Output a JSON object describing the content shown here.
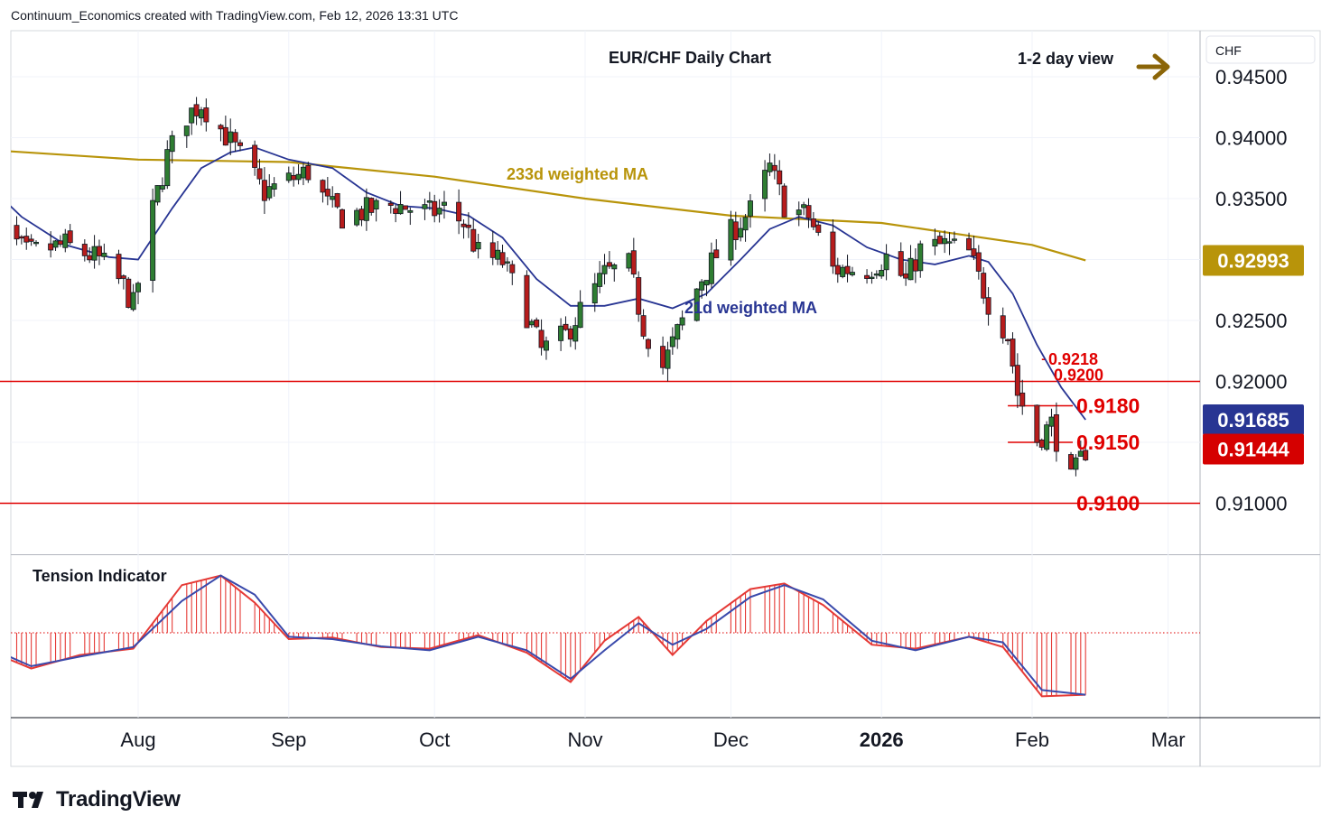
{
  "header": {
    "credit": "Continuum_Economics created with TradingView.com, Feb 12, 2026 13:31 UTC"
  },
  "chart_title": "EUR/CHF Daily Chart",
  "view_label": "1-2 day view",
  "currency": "CHF",
  "brand": "TradingView",
  "ma_labels": {
    "ma233": "233d weighted MA",
    "ma21": "21d weighted MA"
  },
  "indicator_label": "Tension Indicator",
  "price_badges": {
    "ma233": "0.92993",
    "ma21": "0.91685",
    "last": "0.91444"
  },
  "levels": {
    "l9218": "0.9218",
    "l9200": "0.9200",
    "l9180": "0.9180",
    "l9150": "0.9150",
    "l9100": "0.9100"
  },
  "colors": {
    "up_candle": "#2e7d32",
    "down_candle": "#b71c1c",
    "ma233": "#b8940a",
    "ma21": "#283593",
    "level_line": "#e00000",
    "arrow": "#8b6508",
    "badge_last": "#d50000",
    "badge_ma21": "#283593",
    "badge_ma233": "#b8940a"
  },
  "chart_data": [
    {
      "type": "candlestick",
      "title": "EUR/CHF Daily Chart",
      "ylim": [
        0.906,
        0.9495
      ],
      "y_ticks": [
        "0.94500",
        "0.94000",
        "0.93500",
        "0.93000",
        "0.92500",
        "0.92000",
        "0.91500",
        "0.91000"
      ],
      "x_ticks": [
        {
          "label": "Aug",
          "date": "2025-08-01"
        },
        {
          "label": "Sep",
          "date": "2025-09-01"
        },
        {
          "label": "Oct",
          "date": "2025-10-01"
        },
        {
          "label": "Nov",
          "date": "2025-11-01"
        },
        {
          "label": "Dec",
          "date": "2025-12-01"
        },
        {
          "label": "2026",
          "date": "2026-01-01",
          "bold": true
        },
        {
          "label": "Feb",
          "date": "2026-02-01"
        },
        {
          "label": "Mar",
          "date": "2026-03-01"
        }
      ],
      "close_path": [
        [
          "2025-07-01",
          0.9335
        ],
        [
          "2025-07-09",
          0.9305
        ],
        [
          "2025-07-17",
          0.9312
        ],
        [
          "2025-07-24",
          0.93
        ],
        [
          "2025-07-29",
          0.9278
        ],
        [
          "2025-07-31",
          0.9262
        ],
        [
          "2025-08-04",
          0.934
        ],
        [
          "2025-08-07",
          0.9385
        ],
        [
          "2025-08-11",
          0.9418
        ],
        [
          "2025-08-14",
          0.9428
        ],
        [
          "2025-08-19",
          0.9402
        ],
        [
          "2025-08-22",
          0.9385
        ],
        [
          "2025-08-27",
          0.9355
        ],
        [
          "2025-09-01",
          0.9365
        ],
        [
          "2025-09-05",
          0.9372
        ],
        [
          "2025-09-09",
          0.9345
        ],
        [
          "2025-09-12",
          0.9335
        ],
        [
          "2025-09-17",
          0.934
        ],
        [
          "2025-09-23",
          0.9345
        ],
        [
          "2025-09-30",
          0.9338
        ],
        [
          "2025-10-03",
          0.9342
        ],
        [
          "2025-10-07",
          0.933
        ],
        [
          "2025-10-10",
          0.9305
        ],
        [
          "2025-10-15",
          0.9298
        ],
        [
          "2025-10-20",
          0.9255
        ],
        [
          "2025-10-23",
          0.9225
        ],
        [
          "2025-10-28",
          0.9238
        ],
        [
          "2025-10-31",
          0.9258
        ],
        [
          "2025-11-05",
          0.9288
        ],
        [
          "2025-11-10",
          0.9295
        ],
        [
          "2025-11-13",
          0.9245
        ],
        [
          "2025-11-17",
          0.9212
        ],
        [
          "2025-11-20",
          0.924
        ],
        [
          "2025-11-25",
          0.9285
        ],
        [
          "2025-12-01",
          0.9322
        ],
        [
          "2025-12-05",
          0.934
        ],
        [
          "2025-12-09",
          0.9375
        ],
        [
          "2025-12-12",
          0.9345
        ],
        [
          "2025-12-17",
          0.9335
        ],
        [
          "2025-12-22",
          0.9292
        ],
        [
          "2025-12-29",
          0.9292
        ],
        [
          "2026-01-02",
          0.9302
        ],
        [
          "2026-01-06",
          0.9282
        ],
        [
          "2026-01-09",
          0.9308
        ],
        [
          "2026-01-14",
          0.9312
        ],
        [
          "2026-01-19",
          0.9305
        ],
        [
          "2026-01-23",
          0.9265
        ],
        [
          "2026-01-27",
          0.9238
        ],
        [
          "2026-01-29",
          0.919
        ],
        [
          "2026-02-02",
          0.9152
        ],
        [
          "2026-02-05",
          0.9165
        ],
        [
          "2026-02-09",
          0.9118
        ],
        [
          "2026-02-12",
          0.9144
        ]
      ],
      "ma233_path": [
        [
          "2025-07-01",
          0.939
        ],
        [
          "2025-08-01",
          0.9382
        ],
        [
          "2025-09-01",
          0.938
        ],
        [
          "2025-10-01",
          0.9368
        ],
        [
          "2025-11-01",
          0.935
        ],
        [
          "2025-12-01",
          0.9336
        ],
        [
          "2026-01-01",
          0.933
        ],
        [
          "2026-02-01",
          0.9312
        ],
        [
          "2026-02-12",
          0.92993
        ]
      ],
      "ma21_path": [
        [
          "2025-07-01",
          0.9362
        ],
        [
          "2025-07-08",
          0.9335
        ],
        [
          "2025-07-17",
          0.9312
        ],
        [
          "2025-07-26",
          0.9302
        ],
        [
          "2025-08-01",
          0.93
        ],
        [
          "2025-08-08",
          0.9342
        ],
        [
          "2025-08-14",
          0.9375
        ],
        [
          "2025-08-20",
          0.9388
        ],
        [
          "2025-08-25",
          0.9392
        ],
        [
          "2025-09-01",
          0.9382
        ],
        [
          "2025-09-10",
          0.9375
        ],
        [
          "2025-09-17",
          0.9355
        ],
        [
          "2025-09-24",
          0.9344
        ],
        [
          "2025-10-01",
          0.9342
        ],
        [
          "2025-10-08",
          0.9336
        ],
        [
          "2025-10-15",
          0.9318
        ],
        [
          "2025-10-22",
          0.9284
        ],
        [
          "2025-10-29",
          0.9262
        ],
        [
          "2025-11-05",
          0.9262
        ],
        [
          "2025-11-12",
          0.9268
        ],
        [
          "2025-11-19",
          0.926
        ],
        [
          "2025-11-26",
          0.9272
        ],
        [
          "2025-12-03",
          0.93
        ],
        [
          "2025-12-09",
          0.9325
        ],
        [
          "2025-12-15",
          0.9335
        ],
        [
          "2025-12-22",
          0.9328
        ],
        [
          "2025-12-29",
          0.931
        ],
        [
          "2026-01-05",
          0.93
        ],
        [
          "2026-01-12",
          0.9296
        ],
        [
          "2026-01-19",
          0.9303
        ],
        [
          "2026-01-23",
          0.9298
        ],
        [
          "2026-01-28",
          0.9272
        ],
        [
          "2026-02-02",
          0.923
        ],
        [
          "2026-02-07",
          0.9195
        ],
        [
          "2026-02-12",
          0.91685
        ]
      ],
      "levels": [
        {
          "label": "0.9218",
          "value": 0.9218,
          "from": "2026-02-03"
        },
        {
          "label": "0.9200",
          "value": 0.92,
          "from": "2025-07-01"
        },
        {
          "label": "0.9180",
          "value": 0.918,
          "from": "2026-01-27"
        },
        {
          "label": "0.9150",
          "value": 0.915,
          "from": "2026-01-27"
        },
        {
          "label": "0.9100",
          "value": 0.91,
          "from": "2025-07-01"
        }
      ]
    },
    {
      "type": "histogram",
      "title": "Tension Indicator",
      "fast": [
        [
          "2025-07-01",
          -0.22
        ],
        [
          "2025-07-10",
          -0.45
        ],
        [
          "2025-07-20",
          -0.28
        ],
        [
          "2025-07-31",
          -0.2
        ],
        [
          "2025-08-10",
          0.6
        ],
        [
          "2025-08-18",
          0.72
        ],
        [
          "2025-08-25",
          0.38
        ],
        [
          "2025-09-01",
          -0.08
        ],
        [
          "2025-09-10",
          -0.06
        ],
        [
          "2025-09-20",
          -0.18
        ],
        [
          "2025-09-30",
          -0.2
        ],
        [
          "2025-10-10",
          -0.03
        ],
        [
          "2025-10-20",
          -0.25
        ],
        [
          "2025-10-29",
          -0.62
        ],
        [
          "2025-11-05",
          -0.1
        ],
        [
          "2025-11-12",
          0.2
        ],
        [
          "2025-11-19",
          -0.28
        ],
        [
          "2025-11-26",
          0.15
        ],
        [
          "2025-12-05",
          0.55
        ],
        [
          "2025-12-12",
          0.62
        ],
        [
          "2025-12-20",
          0.35
        ],
        [
          "2025-12-30",
          -0.15
        ],
        [
          "2026-01-08",
          -0.2
        ],
        [
          "2026-01-19",
          -0.05
        ],
        [
          "2026-01-26",
          -0.18
        ],
        [
          "2026-02-03",
          -0.8
        ],
        [
          "2026-02-12",
          -0.78
        ]
      ],
      "slow": [
        [
          "2025-07-01",
          -0.18
        ],
        [
          "2025-07-10",
          -0.42
        ],
        [
          "2025-07-20",
          -0.3
        ],
        [
          "2025-07-31",
          -0.18
        ],
        [
          "2025-08-10",
          0.4
        ],
        [
          "2025-08-18",
          0.72
        ],
        [
          "2025-08-25",
          0.48
        ],
        [
          "2025-09-01",
          -0.05
        ],
        [
          "2025-09-10",
          -0.08
        ],
        [
          "2025-09-20",
          -0.17
        ],
        [
          "2025-09-30",
          -0.22
        ],
        [
          "2025-10-10",
          -0.05
        ],
        [
          "2025-10-20",
          -0.22
        ],
        [
          "2025-10-29",
          -0.58
        ],
        [
          "2025-11-05",
          -0.22
        ],
        [
          "2025-11-12",
          0.12
        ],
        [
          "2025-11-19",
          -0.15
        ],
        [
          "2025-11-26",
          0.05
        ],
        [
          "2025-12-05",
          0.45
        ],
        [
          "2025-12-12",
          0.6
        ],
        [
          "2025-12-20",
          0.42
        ],
        [
          "2025-12-30",
          -0.1
        ],
        [
          "2026-01-08",
          -0.22
        ],
        [
          "2026-01-19",
          -0.05
        ],
        [
          "2026-01-26",
          -0.12
        ],
        [
          "2026-02-03",
          -0.72
        ],
        [
          "2026-02-12",
          -0.78
        ]
      ]
    }
  ]
}
